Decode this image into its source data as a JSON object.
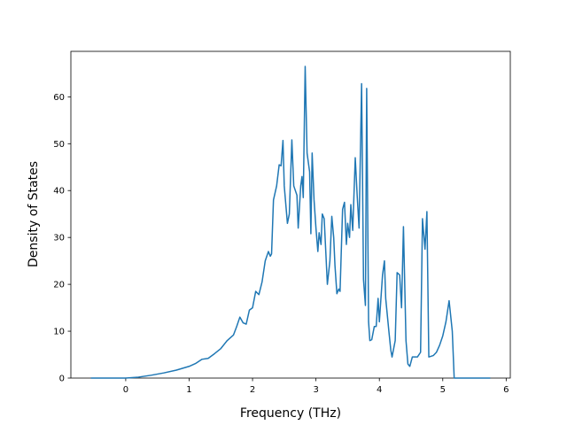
{
  "chart_data": {
    "type": "line",
    "xlabel": "Frequency (THz)",
    "ylabel": "Density of States",
    "xlim": [
      -0.865,
      6.065
    ],
    "ylim": [
      0,
      69.7
    ],
    "xticks": [
      0,
      1,
      2,
      3,
      4,
      5,
      6
    ],
    "yticks": [
      0,
      10,
      20,
      30,
      40,
      50,
      60
    ],
    "series": [
      {
        "color": "#1f77b4",
        "x": [
          -0.55,
          0,
          0.2,
          0.4,
          0.6,
          0.8,
          1.0,
          1.1,
          1.2,
          1.3,
          1.4,
          1.5,
          1.6,
          1.7,
          1.75,
          1.8,
          1.85,
          1.9,
          1.95,
          2.0,
          2.05,
          2.1,
          2.15,
          2.2,
          2.25,
          2.28,
          2.3,
          2.33,
          2.38,
          2.42,
          2.45,
          2.48,
          2.5,
          2.55,
          2.58,
          2.62,
          2.65,
          2.7,
          2.72,
          2.76,
          2.78,
          2.8,
          2.83,
          2.86,
          2.9,
          2.92,
          2.94,
          2.97,
          3.0,
          3.03,
          3.05,
          3.08,
          3.1,
          3.13,
          3.18,
          3.22,
          3.25,
          3.28,
          3.3,
          3.33,
          3.36,
          3.38,
          3.42,
          3.45,
          3.48,
          3.5,
          3.53,
          3.55,
          3.58,
          3.62,
          3.65,
          3.68,
          3.72,
          3.75,
          3.78,
          3.8,
          3.83,
          3.85,
          3.88,
          3.92,
          3.95,
          3.98,
          4.0,
          4.05,
          4.08,
          4.1,
          4.15,
          4.18,
          4.2,
          4.25,
          4.28,
          4.32,
          4.35,
          4.38,
          4.42,
          4.45,
          4.48,
          4.52,
          4.6,
          4.65,
          4.68,
          4.72,
          4.75,
          4.78,
          4.85,
          4.9,
          4.95,
          5.0,
          5.05,
          5.1,
          5.15,
          5.18,
          5.75
        ],
        "values": [
          0,
          0,
          0.2,
          0.6,
          1.1,
          1.7,
          2.5,
          3.1,
          4.0,
          4.2,
          5.2,
          6.3,
          8.0,
          9.2,
          11.0,
          13,
          11.8,
          11.5,
          14.5,
          15,
          18.5,
          17.8,
          20.5,
          25,
          27,
          26,
          26.5,
          38,
          41,
          45.5,
          45.3,
          50.7,
          41,
          33,
          35,
          50.8,
          41,
          39,
          32,
          41,
          43,
          38.5,
          66.5,
          48,
          44,
          30.8,
          48,
          38,
          32,
          27,
          31,
          28.5,
          35,
          34,
          20,
          25,
          34.5,
          30,
          24,
          18,
          19,
          18.5,
          36,
          37.5,
          28.5,
          33,
          30,
          37,
          31.5,
          47,
          39,
          32,
          62.8,
          21,
          15.5,
          61.8,
          12,
          8,
          8.2,
          11,
          11,
          17,
          12,
          22,
          25,
          17,
          10,
          6,
          4.5,
          8,
          22.5,
          22,
          15,
          32.3,
          8,
          3,
          2.5,
          4.5,
          4.5,
          5.5,
          34,
          27.5,
          35.5,
          4.5,
          4.8,
          5.5,
          7,
          9,
          12,
          16.5,
          10,
          0,
          0
        ]
      }
    ]
  }
}
